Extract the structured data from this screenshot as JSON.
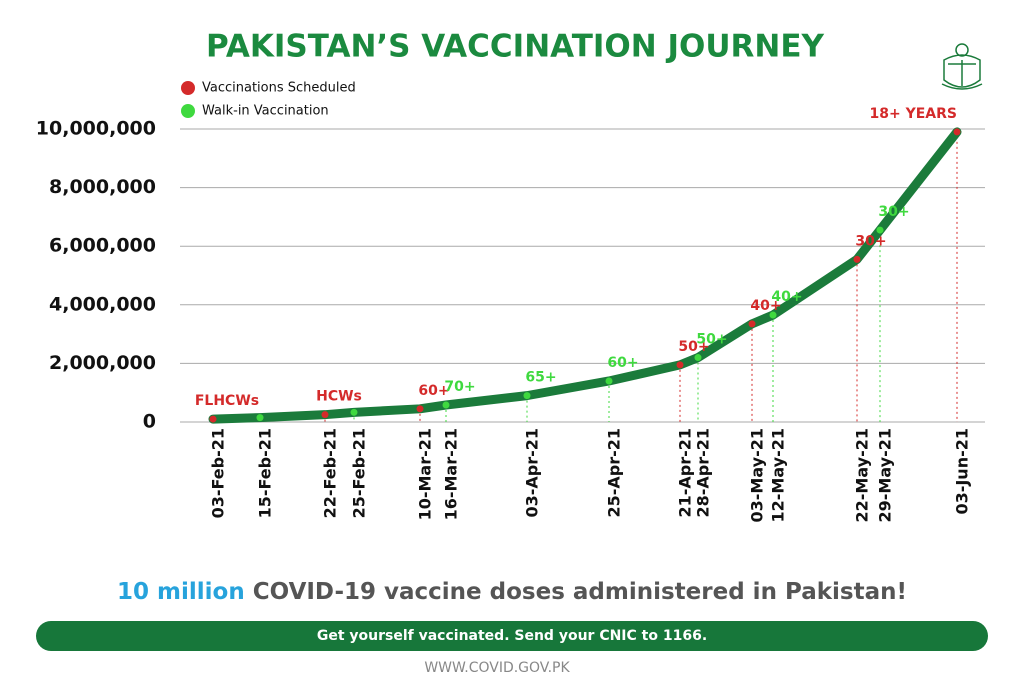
{
  "chart_data": {
    "type": "line",
    "title": "PAKISTAN’S VACCINATION JOURNEY",
    "categories": [
      "03-Feb-21",
      "15-Feb-21",
      "22-Feb-21",
      "25-Feb-21",
      "10-Mar-21",
      "16-Mar-21",
      "03-Apr-21",
      "25-Apr-21",
      "21-Apr-21",
      "28-Apr-21",
      "03-May-21",
      "12-May-21",
      "22-May-21",
      "29-May-21",
      "03-Jun-21"
    ],
    "line_color": "#1b7b3b",
    "series": [
      {
        "name": "Vaccinations Scheduled",
        "color": "#d42a2a",
        "values": [
          100000,
          null,
          250000,
          null,
          450000,
          null,
          null,
          null,
          1950000,
          null,
          3350000,
          null,
          5550000,
          null,
          9900000
        ],
        "value_labels": [
          "FLHCWs",
          null,
          "HCWs",
          null,
          "60+",
          null,
          null,
          null,
          "50+",
          null,
          "40+",
          null,
          "30+",
          null,
          "18+ YEARS"
        ]
      },
      {
        "name": "Walk-in Vaccination",
        "color": "#3fd93f",
        "values": [
          null,
          150000,
          null,
          330000,
          null,
          580000,
          900000,
          1400000,
          null,
          2200000,
          null,
          3650000,
          null,
          6550000,
          null
        ],
        "value_labels": [
          null,
          null,
          null,
          null,
          null,
          "70+",
          "65+",
          "60+",
          null,
          "50+",
          null,
          "40+",
          null,
          "30+",
          null
        ]
      }
    ],
    "ylim": [
      0,
      10000000
    ],
    "yticks": [
      0,
      {
        "value": 2000000,
        "label": "2,000,000"
      },
      {
        "value": 4000000,
        "label": "4,000,000"
      },
      {
        "value": 6000000,
        "label": "6,000,000"
      },
      {
        "value": 8000000,
        "label": "8,000,000"
      },
      {
        "value": 10000000,
        "label": "10,000,000"
      }
    ],
    "grid": true
  },
  "headline": {
    "highlight": "10 million",
    "text": "COVID-19 vaccine doses administered in Pakistan!"
  },
  "banner": "Get yourself vaccinated. Send your CNIC to 1166.",
  "footer": "WWW.COVID.GOV.PK"
}
